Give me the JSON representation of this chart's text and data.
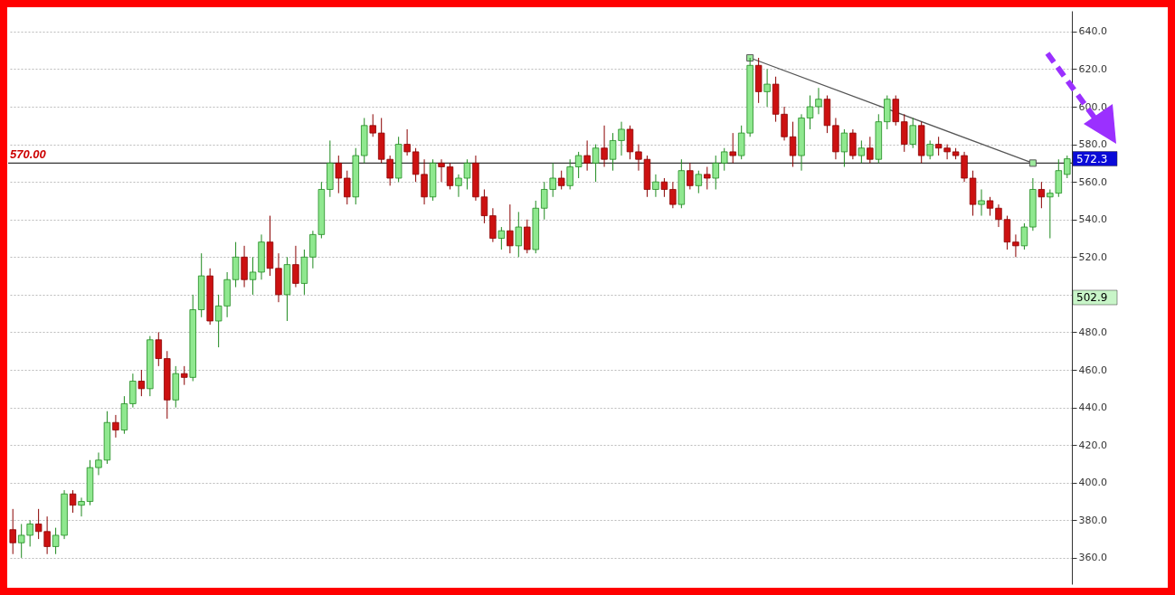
{
  "chart_data": {
    "type": "candlestick",
    "categories": [
      null,
      null,
      null,
      null,
      null,
      null,
      null,
      null,
      null,
      null,
      null,
      null,
      null,
      null,
      null,
      null,
      null,
      null,
      null,
      null,
      null,
      null,
      null,
      null,
      null,
      null,
      null,
      null,
      null,
      null,
      null,
      null,
      null,
      null,
      null,
      null,
      null,
      null,
      null,
      null,
      null,
      null,
      null,
      null,
      null,
      null,
      null,
      null,
      null,
      null,
      null,
      null,
      null,
      null,
      null,
      null,
      null,
      null,
      null,
      null,
      null,
      null,
      null,
      null,
      null,
      null,
      null,
      null,
      null,
      null,
      null,
      null,
      null,
      null,
      null,
      null,
      null,
      null,
      null,
      null,
      null,
      null,
      null,
      null,
      null,
      null,
      null,
      null,
      null,
      null,
      null,
      null,
      null,
      null,
      null,
      null,
      null,
      null,
      null,
      null,
      null,
      null,
      null,
      null,
      null,
      null,
      null,
      null,
      null,
      null,
      null,
      null,
      null,
      null,
      null,
      null,
      null,
      null,
      null,
      null,
      null,
      null,
      null,
      null
    ],
    "ohlc": [
      [
        375,
        386,
        362,
        368
      ],
      [
        368,
        378,
        360,
        372
      ],
      [
        372,
        380,
        366,
        378
      ],
      [
        378,
        386,
        370,
        374
      ],
      [
        374,
        382,
        362,
        366
      ],
      [
        366,
        376,
        362,
        372
      ],
      [
        372,
        396,
        370,
        394
      ],
      [
        394,
        396,
        384,
        388
      ],
      [
        388,
        392,
        382,
        390
      ],
      [
        390,
        412,
        388,
        408
      ],
      [
        408,
        416,
        404,
        412
      ],
      [
        412,
        438,
        410,
        432
      ],
      [
        432,
        436,
        424,
        428
      ],
      [
        428,
        446,
        426,
        442
      ],
      [
        442,
        458,
        440,
        454
      ],
      [
        454,
        460,
        446,
        450
      ],
      [
        450,
        478,
        446,
        476
      ],
      [
        476,
        480,
        462,
        466
      ],
      [
        466,
        470,
        434,
        444
      ],
      [
        444,
        462,
        440,
        458
      ],
      [
        458,
        462,
        452,
        456
      ],
      [
        456,
        500,
        454,
        492
      ],
      [
        492,
        522,
        488,
        510
      ],
      [
        510,
        514,
        484,
        486
      ],
      [
        486,
        500,
        472,
        494
      ],
      [
        494,
        512,
        488,
        508
      ],
      [
        508,
        528,
        504,
        520
      ],
      [
        520,
        526,
        504,
        508
      ],
      [
        508,
        520,
        500,
        512
      ],
      [
        512,
        532,
        508,
        528
      ],
      [
        528,
        542,
        510,
        514
      ],
      [
        514,
        522,
        496,
        500
      ],
      [
        500,
        520,
        486,
        516
      ],
      [
        516,
        526,
        504,
        506
      ],
      [
        506,
        524,
        500,
        520
      ],
      [
        520,
        534,
        514,
        532
      ],
      [
        532,
        560,
        530,
        556
      ],
      [
        556,
        582,
        552,
        570
      ],
      [
        570,
        574,
        554,
        562
      ],
      [
        562,
        566,
        548,
        552
      ],
      [
        552,
        578,
        548,
        574
      ],
      [
        574,
        594,
        570,
        590
      ],
      [
        590,
        596,
        584,
        586
      ],
      [
        586,
        594,
        570,
        572
      ],
      [
        572,
        574,
        558,
        562
      ],
      [
        562,
        584,
        560,
        580
      ],
      [
        580,
        588,
        574,
        576
      ],
      [
        576,
        578,
        560,
        564
      ],
      [
        564,
        572,
        548,
        552
      ],
      [
        552,
        572,
        550,
        570
      ],
      [
        570,
        572,
        560,
        568
      ],
      [
        568,
        570,
        556,
        558
      ],
      [
        558,
        564,
        552,
        562
      ],
      [
        562,
        572,
        556,
        570
      ],
      [
        570,
        574,
        550,
        552
      ],
      [
        552,
        556,
        538,
        542
      ],
      [
        542,
        546,
        528,
        530
      ],
      [
        530,
        536,
        524,
        534
      ],
      [
        534,
        548,
        522,
        526
      ],
      [
        526,
        544,
        520,
        536
      ],
      [
        536,
        540,
        522,
        524
      ],
      [
        524,
        550,
        522,
        546
      ],
      [
        546,
        560,
        540,
        556
      ],
      [
        556,
        570,
        552,
        562
      ],
      [
        562,
        566,
        556,
        558
      ],
      [
        558,
        572,
        556,
        568
      ],
      [
        568,
        576,
        562,
        574
      ],
      [
        574,
        582,
        566,
        570
      ],
      [
        570,
        580,
        560,
        578
      ],
      [
        578,
        590,
        568,
        572
      ],
      [
        572,
        586,
        566,
        582
      ],
      [
        582,
        592,
        574,
        588
      ],
      [
        588,
        590,
        572,
        576
      ],
      [
        576,
        580,
        566,
        572
      ],
      [
        572,
        574,
        552,
        556
      ],
      [
        556,
        564,
        552,
        560
      ],
      [
        560,
        562,
        552,
        556
      ],
      [
        556,
        560,
        546,
        548
      ],
      [
        548,
        572,
        546,
        566
      ],
      [
        566,
        570,
        556,
        558
      ],
      [
        558,
        566,
        554,
        564
      ],
      [
        564,
        568,
        556,
        562
      ],
      [
        562,
        574,
        556,
        570
      ],
      [
        570,
        578,
        566,
        576
      ],
      [
        576,
        586,
        570,
        574
      ],
      [
        574,
        590,
        572,
        586
      ],
      [
        586,
        626,
        584,
        622
      ],
      [
        622,
        626,
        602,
        608
      ],
      [
        608,
        620,
        600,
        612
      ],
      [
        612,
        616,
        592,
        596
      ],
      [
        596,
        600,
        582,
        584
      ],
      [
        584,
        592,
        568,
        574
      ],
      [
        574,
        596,
        566,
        594
      ],
      [
        594,
        606,
        588,
        600
      ],
      [
        600,
        610,
        596,
        604
      ],
      [
        604,
        606,
        586,
        590
      ],
      [
        590,
        594,
        572,
        576
      ],
      [
        576,
        588,
        568,
        586
      ],
      [
        586,
        588,
        572,
        574
      ],
      [
        574,
        582,
        570,
        578
      ],
      [
        578,
        584,
        570,
        572
      ],
      [
        572,
        596,
        570,
        592
      ],
      [
        592,
        606,
        588,
        604
      ],
      [
        604,
        606,
        590,
        592
      ],
      [
        592,
        596,
        576,
        580
      ],
      [
        580,
        594,
        578,
        590
      ],
      [
        590,
        592,
        570,
        574
      ],
      [
        574,
        582,
        572,
        580
      ],
      [
        580,
        584,
        574,
        578
      ],
      [
        578,
        580,
        572,
        576
      ],
      [
        576,
        578,
        572,
        574
      ],
      [
        574,
        576,
        560,
        562
      ],
      [
        562,
        566,
        542,
        548
      ],
      [
        548,
        556,
        542,
        550
      ],
      [
        550,
        552,
        542,
        546
      ],
      [
        546,
        548,
        536,
        540
      ],
      [
        540,
        542,
        524,
        528
      ],
      [
        528,
        532,
        520,
        526
      ],
      [
        526,
        538,
        524,
        536
      ],
      [
        536,
        562,
        534,
        556
      ],
      [
        556,
        560,
        546,
        552
      ],
      [
        552,
        556,
        530,
        554
      ],
      [
        554,
        572,
        552,
        566
      ],
      [
        564,
        574,
        562,
        572.3
      ]
    ],
    "colors": [
      "#cc1111",
      "#8fe88f",
      "#8fe88f",
      "#cc1111",
      "#cc1111",
      "#8fe88f",
      "#8fe88f",
      "#cc1111",
      "#8fe88f",
      "#8fe88f",
      "#8fe88f",
      "#8fe88f",
      "#cc1111",
      "#8fe88f",
      "#8fe88f",
      "#cc1111",
      "#8fe88f",
      "#cc1111",
      "#cc1111",
      "#8fe88f",
      "#cc1111",
      "#8fe88f",
      "#8fe88f",
      "#cc1111",
      "#8fe88f",
      "#8fe88f",
      "#8fe88f",
      "#cc1111",
      "#8fe88f",
      "#8fe88f",
      "#cc1111",
      "#cc1111",
      "#8fe88f",
      "#cc1111",
      "#8fe88f",
      "#8fe88f",
      "#8fe88f",
      "#8fe88f",
      "#cc1111",
      "#cc1111",
      "#8fe88f",
      "#8fe88f",
      "#cc1111",
      "#cc1111",
      "#cc1111",
      "#8fe88f",
      "#cc1111",
      "#cc1111",
      "#cc1111",
      "#8fe88f",
      "#cc1111",
      "#cc1111",
      "#8fe88f",
      "#8fe88f",
      "#cc1111",
      "#cc1111",
      "#cc1111",
      "#8fe88f",
      "#cc1111",
      "#8fe88f",
      "#cc1111",
      "#8fe88f",
      "#8fe88f",
      "#8fe88f",
      "#cc1111",
      "#8fe88f",
      "#8fe88f",
      "#cc1111",
      "#8fe88f",
      "#cc1111",
      "#8fe88f",
      "#8fe88f",
      "#cc1111",
      "#cc1111",
      "#cc1111",
      "#8fe88f",
      "#cc1111",
      "#cc1111",
      "#8fe88f",
      "#cc1111",
      "#8fe88f",
      "#cc1111",
      "#8fe88f",
      "#8fe88f",
      "#cc1111",
      "#8fe88f",
      "#8fe88f",
      "#cc1111",
      "#8fe88f",
      "#cc1111",
      "#cc1111",
      "#cc1111",
      "#8fe88f",
      "#8fe88f",
      "#8fe88f",
      "#cc1111",
      "#cc1111",
      "#8fe88f",
      "#cc1111",
      "#8fe88f",
      "#cc1111",
      "#8fe88f",
      "#8fe88f",
      "#cc1111",
      "#cc1111",
      "#8fe88f",
      "#cc1111",
      "#8fe88f",
      "#cc1111",
      "#cc1111",
      "#cc1111",
      "#cc1111",
      "#cc1111",
      "#8fe88f",
      "#cc1111",
      "#cc1111",
      "#cc1111",
      "#cc1111",
      "#8fe88f",
      "#8fe88f",
      "#cc1111",
      "#8fe88f",
      "#8fe88f",
      "#8fe88f"
    ],
    "series": [
      {
        "type": "line",
        "color": "#555555",
        "marker": "square",
        "values": [
          null,
          null,
          null,
          null,
          null,
          null,
          null,
          null,
          null,
          null,
          null,
          null,
          null,
          null,
          null,
          null,
          null,
          null,
          null,
          null,
          null,
          null,
          null,
          null,
          null,
          null,
          null,
          null,
          null,
          null,
          null,
          null,
          null,
          null,
          null,
          null,
          null,
          null,
          null,
          null,
          null,
          null,
          null,
          null,
          null,
          null,
          null,
          null,
          null,
          null,
          null,
          null,
          null,
          null,
          null,
          null,
          null,
          null,
          null,
          null,
          null,
          null,
          null,
          null,
          null,
          null,
          null,
          null,
          null,
          null,
          null,
          null,
          null,
          null,
          null,
          null,
          null,
          null,
          null,
          null,
          null,
          null,
          null,
          null,
          null,
          null,
          626,
          null,
          null,
          null,
          null,
          null,
          null,
          null,
          null,
          null,
          null,
          null,
          null,
          null,
          null,
          null,
          null,
          null,
          null,
          null,
          null,
          null,
          null,
          null,
          null,
          null,
          null,
          null,
          null,
          null,
          null,
          null,
          null,
          570,
          null,
          null,
          null,
          null
        ]
      }
    ],
    "ylim": [
      346,
      651
    ],
    "yticks": [
      {
        "value": 360,
        "label": "360.0"
      },
      {
        "value": 380,
        "label": "380.0"
      },
      {
        "value": 400,
        "label": "400.0"
      },
      {
        "value": 420,
        "label": "420.0"
      },
      {
        "value": 440,
        "label": "440.0"
      },
      {
        "value": 460,
        "label": "460.0"
      },
      {
        "value": 480,
        "label": "480.0"
      },
      {
        "value": 500,
        "label": null
      },
      {
        "value": 520,
        "label": "520.0"
      },
      {
        "value": 540,
        "label": "540.0"
      },
      {
        "value": 560,
        "label": "560.0"
      },
      {
        "value": 580,
        "label": "580.0"
      },
      {
        "value": 600,
        "label": "600.0"
      },
      {
        "value": 620,
        "label": "620.0"
      },
      {
        "value": 640,
        "label": "640.0"
      }
    ],
    "grid": "y",
    "ref_lines": [
      {
        "axis": "y",
        "value": 570,
        "label": "570.00",
        "color": "#333333"
      }
    ],
    "annotations": [
      "572.3",
      "502.9"
    ]
  }
}
